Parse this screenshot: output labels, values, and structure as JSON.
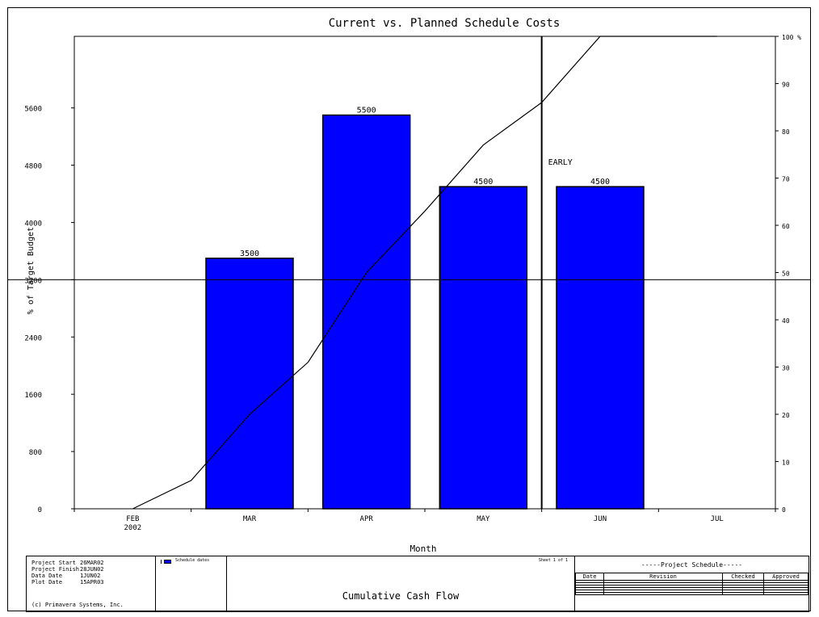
{
  "chart_data": {
    "type": "bar",
    "title": "Current vs. Planned Schedule Costs",
    "xlabel": "Month",
    "ylabel": "% of Target Budget",
    "categories": [
      "FEB",
      "MAR",
      "APR",
      "MAY",
      "JUN",
      "JUL"
    ],
    "year_label": "2002",
    "series": [
      {
        "values": [
          0,
          3500,
          5500,
          4500,
          4500,
          0
        ],
        "color": "#0000ff"
      }
    ],
    "data_labels": [
      "",
      "3500",
      "5500",
      "4500",
      "4500",
      ""
    ],
    "ylim": [
      0,
      6600
    ],
    "yticks": [
      0,
      800,
      1600,
      2400,
      3200,
      4000,
      4800,
      5600
    ],
    "y2_ticks": [
      "0",
      "10",
      "20",
      "30",
      "40",
      "50",
      "60",
      "70",
      "80",
      "90",
      "100 %"
    ],
    "y2lim": [
      0,
      100
    ],
    "cumulative_line": {
      "x": [
        0.5,
        1.0,
        1.5,
        2.0,
        2.5,
        3.0,
        3.5,
        4.0,
        4.5,
        5.0,
        5.5
      ],
      "y": [
        0,
        6,
        20,
        31,
        50,
        63,
        77,
        86,
        100,
        100,
        100
      ]
    },
    "reference_hline_y": 3200,
    "data_date_marker": {
      "x": 4.0,
      "label": "EARLY"
    }
  },
  "footer": {
    "info": [
      {
        "key": "Project Start",
        "value": "26MAR02"
      },
      {
        "key": "Project Finish",
        "value": "28JUN02"
      },
      {
        "key": "Data Date",
        "value": "1JUN02"
      },
      {
        "key": "Plot Date",
        "value": "15APR03"
      }
    ],
    "copyright": "(c) Primavera Systems, Inc.",
    "legend_label": "Schedule dates",
    "sheet": "Sheet 1 of 1",
    "report_title": "Cumulative Cash Flow",
    "schedule_title": "-----Project Schedule-----",
    "columns": [
      "Date",
      "Revision",
      "Checked",
      "Approved"
    ]
  }
}
